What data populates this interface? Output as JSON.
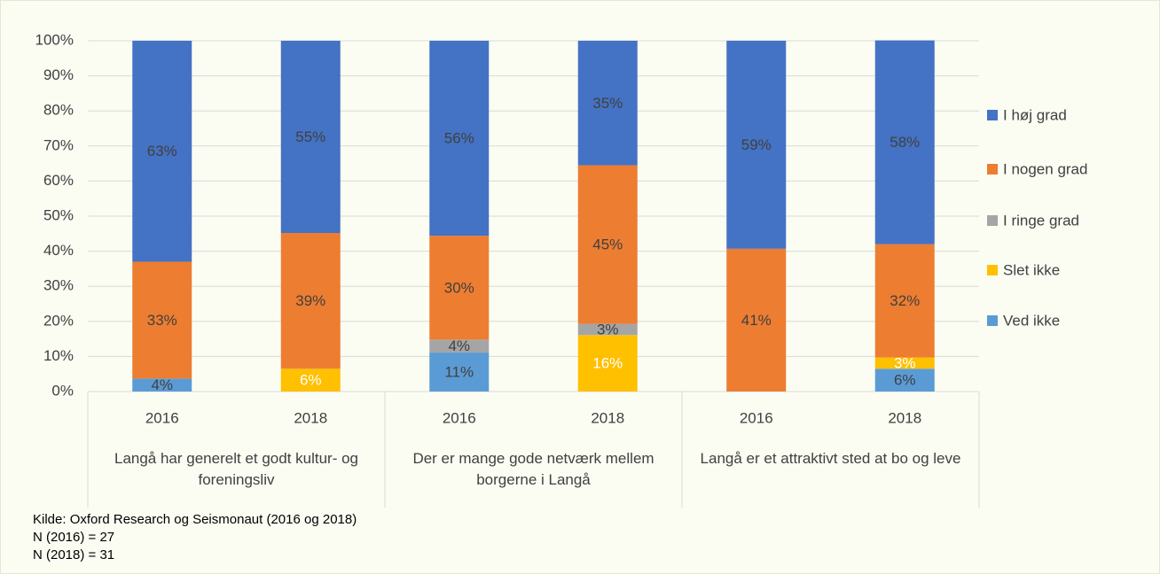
{
  "chart_data": {
    "type": "stacked_bar",
    "categories": [
      "2016",
      "2018",
      "2016",
      "2018",
      "2016",
      "2018"
    ],
    "groups": [
      "Langå har generelt et godt kultur- og foreningsliv",
      "Der er mange gode netværk mellem borgerne i Langå",
      "Langå er et attraktivt sted at bo og leve"
    ],
    "series": [
      {
        "name": "Ved ikke",
        "color": "#5b9bd5",
        "values": [
          3.7,
          null,
          11.1,
          null,
          null,
          6.5
        ],
        "value_labels": [
          "4%",
          null,
          "11%",
          null,
          null,
          "6%"
        ]
      },
      {
        "name": "Slet ikke",
        "color": "#ffc000",
        "values": [
          null,
          6.5,
          null,
          16.1,
          null,
          3.2
        ],
        "value_labels": [
          null,
          "6%",
          null,
          "16%",
          null,
          "3%"
        ]
      },
      {
        "name": "I ringe grad",
        "color": "#a5a5a5",
        "values": [
          null,
          null,
          3.7,
          3.2,
          null,
          null
        ],
        "value_labels": [
          null,
          null,
          "4%",
          "3%",
          null,
          null
        ]
      },
      {
        "name": "I nogen grad",
        "color": "#ed7d31",
        "values": [
          33.3,
          38.7,
          29.6,
          45.2,
          40.7,
          32.3
        ],
        "value_labels": [
          "33%",
          "39%",
          "30%",
          "45%",
          "41%",
          "32%"
        ]
      },
      {
        "name": "I høj grad",
        "color": "#4472c4",
        "values": [
          63.0,
          54.8,
          55.6,
          35.5,
          59.3,
          58.1
        ],
        "value_labels": [
          "63%",
          "55%",
          "56%",
          "35%",
          "59%",
          "58%"
        ]
      }
    ],
    "ylim": [
      0,
      100
    ],
    "yticks": [
      {
        "value": 0,
        "label": "0%"
      },
      {
        "value": 10,
        "label": "10%"
      },
      {
        "value": 20,
        "label": "20%"
      },
      {
        "value": 30,
        "label": "30%"
      },
      {
        "value": 40,
        "label": "40%"
      },
      {
        "value": 50,
        "label": "50%"
      },
      {
        "value": 60,
        "label": "60%"
      },
      {
        "value": 70,
        "label": "70%"
      },
      {
        "value": 80,
        "label": "80%"
      },
      {
        "value": 90,
        "label": "90%"
      },
      {
        "value": 100,
        "label": "100%"
      }
    ],
    "grid": true,
    "legend": "right",
    "notes": [
      "Kilde: Oxford Research og Seismonaut (2016 og 2018)",
      "N (2016) = 27",
      "N (2018) = 31"
    ]
  }
}
